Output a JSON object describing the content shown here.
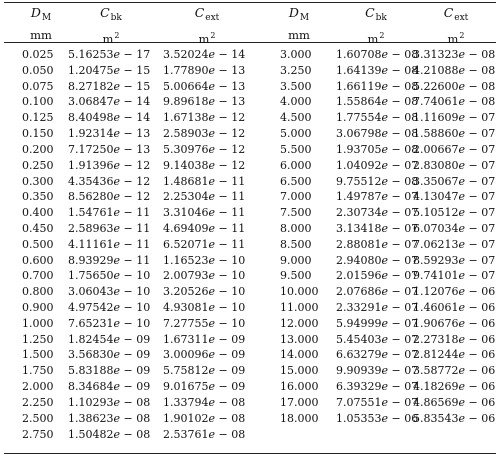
{
  "headers": {
    "d_symbol": "D",
    "d_sub": "M",
    "d_unit": "mm",
    "cbk_symbol": "C",
    "cbk_sub": "bk",
    "cext_symbol": "C",
    "cext_sub": "ext",
    "area_unit": "m",
    "area_exp": "2"
  },
  "left": {
    "d": [
      "0.025",
      "0.050",
      "0.075",
      "0.100",
      "0.125",
      "0.150",
      "0.200",
      "0.250",
      "0.300",
      "0.350",
      "0.400",
      "0.450",
      "0.500",
      "0.600",
      "0.700",
      "0.800",
      "0.900",
      "1.000",
      "1.250",
      "1.500",
      "1.750",
      "2.000",
      "2.250",
      "2.500",
      "2.750"
    ],
    "cbk": [
      [
        "5.16253",
        "−",
        "17"
      ],
      [
        "1.20475",
        "−",
        "15"
      ],
      [
        "8.27182",
        "−",
        "15"
      ],
      [
        "3.06847",
        "−",
        "14"
      ],
      [
        "8.40498",
        "−",
        "14"
      ],
      [
        "1.92314",
        "−",
        "13"
      ],
      [
        "7.17250",
        "−",
        "13"
      ],
      [
        "1.91396",
        "−",
        "12"
      ],
      [
        "4.35436",
        "−",
        "12"
      ],
      [
        "8.56280",
        "−",
        "12"
      ],
      [
        "1.54761",
        "−",
        "11"
      ],
      [
        "2.58963",
        "−",
        "11"
      ],
      [
        "4.11161",
        "−",
        "11"
      ],
      [
        "8.93929",
        "−",
        "11"
      ],
      [
        "1.75650",
        "−",
        "10"
      ],
      [
        "3.06043",
        "−",
        "10"
      ],
      [
        "4.97542",
        "−",
        "10"
      ],
      [
        "7.65231",
        "−",
        "10"
      ],
      [
        "1.82454",
        "−",
        "09"
      ],
      [
        "3.56830",
        "−",
        "09"
      ],
      [
        "5.83188",
        "−",
        "09"
      ],
      [
        "8.34684",
        "−",
        "09"
      ],
      [
        "1.10293",
        "−",
        "08"
      ],
      [
        "1.38623",
        "−",
        "08"
      ],
      [
        "1.50482",
        "−",
        "08"
      ]
    ],
    "cext": [
      [
        "3.52024",
        "−",
        "14"
      ],
      [
        "1.77890",
        "−",
        "13"
      ],
      [
        "5.00664",
        "−",
        "13"
      ],
      [
        "9.89618",
        "−",
        "13"
      ],
      [
        "1.67138",
        "−",
        "12"
      ],
      [
        "2.58903",
        "−",
        "12"
      ],
      [
        "5.30976",
        "−",
        "12"
      ],
      [
        "9.14038",
        "−",
        "12"
      ],
      [
        "1.48681",
        "−",
        "11"
      ],
      [
        "2.25304",
        "−",
        "11"
      ],
      [
        "3.31046",
        "−",
        "11"
      ],
      [
        "4.69409",
        "−",
        "11"
      ],
      [
        "6.52071",
        "−",
        "11"
      ],
      [
        "1.16523",
        "−",
        "10"
      ],
      [
        "2.00793",
        "−",
        "10"
      ],
      [
        "3.20526",
        "−",
        "10"
      ],
      [
        "4.93081",
        "−",
        "10"
      ],
      [
        "7.27755",
        "−",
        "10"
      ],
      [
        "1.67311",
        "−",
        "09"
      ],
      [
        "3.00096",
        "−",
        "09"
      ],
      [
        "5.75812",
        "−",
        "09"
      ],
      [
        "9.01675",
        "−",
        "09"
      ],
      [
        "1.33794",
        "−",
        "08"
      ],
      [
        "1.90102",
        "−",
        "08"
      ],
      [
        "2.53761",
        "−",
        "08"
      ]
    ]
  },
  "right": {
    "d": [
      "3.000",
      "3.250",
      "3.500",
      "4.000",
      "4.500",
      "5.000",
      "5.500",
      "6.000",
      "6.500",
      "7.000",
      "7.500",
      "8.000",
      "8.500",
      "9.000",
      "9.500",
      "10.000",
      "11.000",
      "12.000",
      "13.000",
      "14.000",
      "15.000",
      "16.000",
      "17.000",
      "18.000"
    ],
    "cbk": [
      [
        "1.60708",
        "−",
        "08"
      ],
      [
        "1.64139",
        "−",
        "08"
      ],
      [
        "1.66119",
        "−",
        "08"
      ],
      [
        "1.55864",
        "−",
        "08"
      ],
      [
        "1.77554",
        "−",
        "08"
      ],
      [
        "3.06798",
        "−",
        "08"
      ],
      [
        "1.93705",
        "−",
        "08"
      ],
      [
        "1.04092",
        "−",
        "07"
      ],
      [
        "9.75512",
        "−",
        "08"
      ],
      [
        "1.49787",
        "−",
        "07"
      ],
      [
        "2.30734",
        "−",
        "07"
      ],
      [
        "3.13418",
        "−",
        "07"
      ],
      [
        "2.88081",
        "−",
        "07"
      ],
      [
        "2.94080",
        "−",
        "07"
      ],
      [
        "2.01596",
        "−",
        "07"
      ],
      [
        "2.07686",
        "−",
        "07"
      ],
      [
        "2.33291",
        "−",
        "07"
      ],
      [
        "5.94999",
        "−",
        "07"
      ],
      [
        "5.45403",
        "−",
        "07"
      ],
      [
        "6.63279",
        "−",
        "07"
      ],
      [
        "9.90939",
        "−",
        "07"
      ],
      [
        "6.39329",
        "−",
        "07"
      ],
      [
        "7.07551",
        "−",
        "07"
      ],
      [
        "1.05353",
        "−",
        "06"
      ]
    ],
    "cext": [
      [
        "3.31323",
        "−",
        "08"
      ],
      [
        "4.21088",
        "−",
        "08"
      ],
      [
        "5.22600",
        "−",
        "08"
      ],
      [
        "7.74061",
        "−",
        "08"
      ],
      [
        "1.11609",
        "−",
        "07"
      ],
      [
        "1.58860",
        "−",
        "07"
      ],
      [
        "2.00667",
        "−",
        "07"
      ],
      [
        "2.83080",
        "−",
        "07"
      ],
      [
        "3.35067",
        "−",
        "07"
      ],
      [
        "4.13047",
        "−",
        "07"
      ],
      [
        "5.10512",
        "−",
        "07"
      ],
      [
        "6.07034",
        "−",
        "07"
      ],
      [
        "7.06213",
        "−",
        "07"
      ],
      [
        "8.59293",
        "−",
        "07"
      ],
      [
        "9.74101",
        "−",
        "07"
      ],
      [
        "1.12076",
        "−",
        "06"
      ],
      [
        "1.46061",
        "−",
        "06"
      ],
      [
        "1.90676",
        "−",
        "06"
      ],
      [
        "2.27318",
        "−",
        "06"
      ],
      [
        "2.81244",
        "−",
        "06"
      ],
      [
        "3.58772",
        "−",
        "06"
      ],
      [
        "4.18269",
        "−",
        "06"
      ],
      [
        "4.86569",
        "−",
        "06"
      ],
      [
        "5.83543",
        "−",
        "06"
      ]
    ]
  }
}
